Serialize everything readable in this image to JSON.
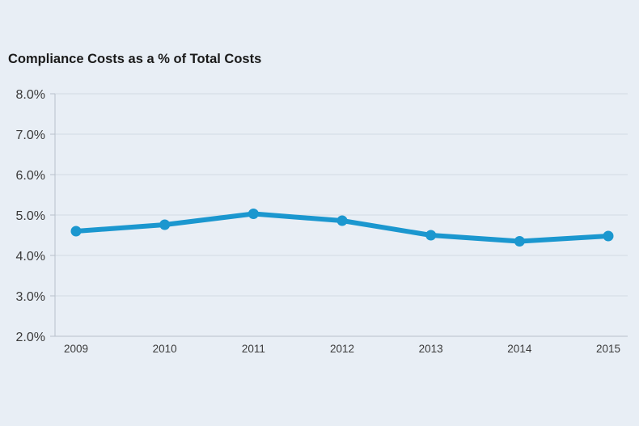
{
  "chart_data": {
    "type": "line",
    "title": "Compliance Costs as a % of Total Costs",
    "xlabel": "",
    "ylabel": "",
    "categories": [
      "2009",
      "2010",
      "2011",
      "2012",
      "2013",
      "2014",
      "2015"
    ],
    "series": [
      {
        "values": [
          4.6,
          4.76,
          5.03,
          4.86,
          4.5,
          4.35,
          4.48
        ],
        "color": "#1b97cf"
      }
    ],
    "y_ticks": [
      {
        "value": 8.0,
        "label": "8.0%"
      },
      {
        "value": 7.0,
        "label": "7.0%"
      },
      {
        "value": 6.0,
        "label": "6.0%"
      },
      {
        "value": 5.0,
        "label": "5.0%"
      },
      {
        "value": 4.0,
        "label": "4.0%"
      },
      {
        "value": 3.0,
        "label": "3.0%"
      },
      {
        "value": 2.0,
        "label": "2.0%"
      }
    ],
    "ylim": [
      2.0,
      8.0
    ],
    "grid": true,
    "legend": "none"
  }
}
